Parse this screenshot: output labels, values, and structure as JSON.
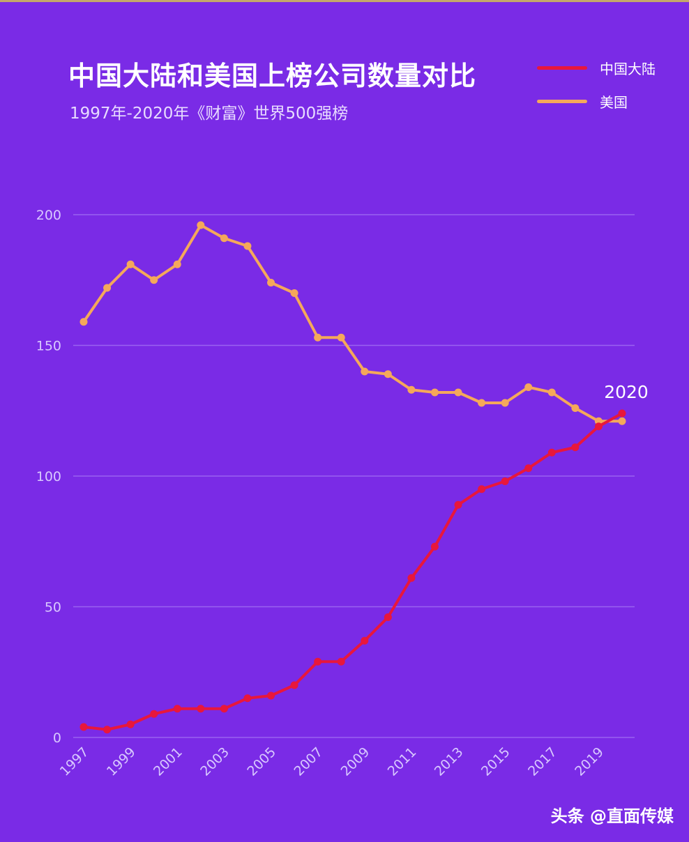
{
  "chart_data": {
    "type": "line",
    "title": "中国大陆和美国上榜公司数量对比",
    "subtitle": "1997年-2020年《财富》世界500强榜",
    "x": [
      1997,
      1998,
      1999,
      2000,
      2001,
      2002,
      2003,
      2004,
      2005,
      2006,
      2007,
      2008,
      2009,
      2010,
      2011,
      2012,
      2013,
      2014,
      2015,
      2016,
      2017,
      2018,
      2019,
      2020
    ],
    "x_tick_labels": [
      "1997",
      "1999",
      "2001",
      "2003",
      "2005",
      "2007",
      "2009",
      "2011",
      "2013",
      "2015",
      "2017",
      "2019"
    ],
    "y_ticks": [
      0,
      50,
      100,
      150,
      200
    ],
    "ylim": [
      0,
      200
    ],
    "grid": true,
    "legend_position": "top-right",
    "series": [
      {
        "name": "中国大陆",
        "color": "#e8173c",
        "values": [
          4,
          3,
          5,
          9,
          11,
          11,
          11,
          15,
          16,
          20,
          29,
          29,
          37,
          46,
          61,
          73,
          89,
          95,
          98,
          103,
          109,
          111,
          119,
          124
        ]
      },
      {
        "name": "美国",
        "color": "#f5a85a",
        "values": [
          159,
          172,
          181,
          175,
          181,
          196,
          191,
          188,
          174,
          170,
          153,
          153,
          140,
          139,
          133,
          132,
          132,
          128,
          128,
          134,
          132,
          126,
          121,
          121
        ]
      }
    ],
    "annotation": "2020"
  },
  "watermark": "头条 @直面传媒"
}
